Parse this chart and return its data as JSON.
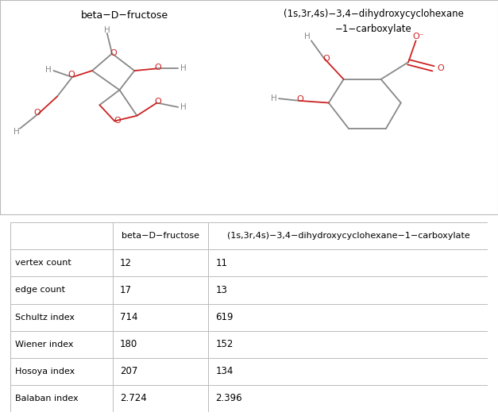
{
  "col0_header": "",
  "col1_header": "beta−D−fructose",
  "col2_header": "(1s,3r,4s)−3,4−dihydroxycyclohexane−1−carboxylate",
  "rows": [
    [
      "vertex count",
      "12",
      "11"
    ],
    [
      "edge count",
      "17",
      "13"
    ],
    [
      "Schultz index",
      "714",
      "619"
    ],
    [
      "Wiener index",
      "180",
      "152"
    ],
    [
      "Hosoya index",
      "207",
      "134"
    ],
    [
      "Balaban index",
      "2.724",
      "2.396"
    ]
  ],
  "mol1_title": "beta−D−fructose",
  "mol2_title_line1": "(1s,3r,4s)−3,4−dihydroxycyclohexane",
  "mol2_title_line2": "−1−carboxylate",
  "bg_color": "#ffffff",
  "border_color": "#bbbbbb",
  "text_color": "#000000",
  "red_color": "#cc2222",
  "gray_color": "#888888",
  "line_color": "#888888"
}
